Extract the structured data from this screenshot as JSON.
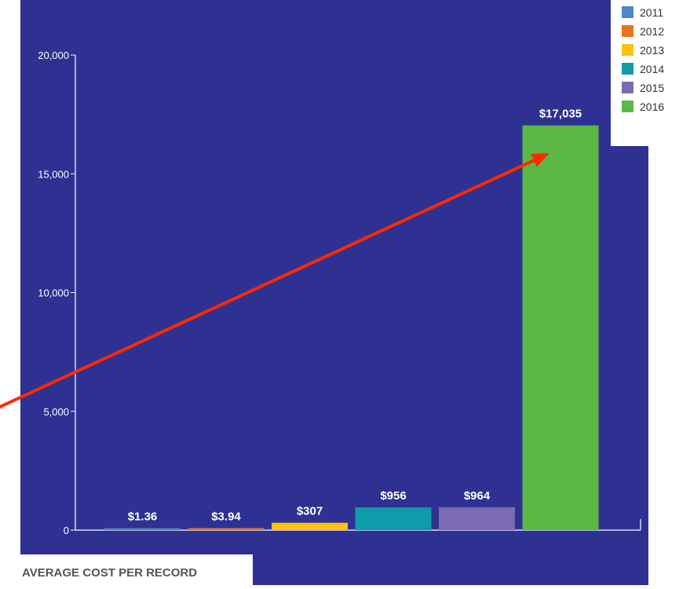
{
  "chart_data": {
    "type": "bar",
    "categories": [
      "2011",
      "2012",
      "2013",
      "2014",
      "2015",
      "2016"
    ],
    "values": [
      1.36,
      3.94,
      307,
      956,
      964,
      17035
    ],
    "value_labels": [
      "$1.36",
      "$3.94",
      "$307",
      "$956",
      "$964",
      "$17,035"
    ],
    "series_colors": [
      "#4e86c6",
      "#e8731f",
      "#fec20f",
      "#0f9caa",
      "#7b6bb2",
      "#5db745"
    ],
    "legend": [
      "2011",
      "2012",
      "2013",
      "2014",
      "2015",
      "2016"
    ],
    "legend_placement": "top-right",
    "yticks": [
      "0",
      "5,000",
      "10,000",
      "15,000",
      "20,000"
    ],
    "ytick_values": [
      0,
      5000,
      10000,
      15000,
      20000
    ],
    "ylim": [
      0,
      20000
    ],
    "grid": false,
    "caption": "AVERAGE COST PER RECORD",
    "annotation": "red trend arrow pointing to the 2016 bar",
    "colors": {
      "plot_background": "#2e3192",
      "axis": "#ffffff",
      "text": "#ffffff",
      "arrow": "#ff2a00",
      "caption_text": "#555555"
    }
  }
}
